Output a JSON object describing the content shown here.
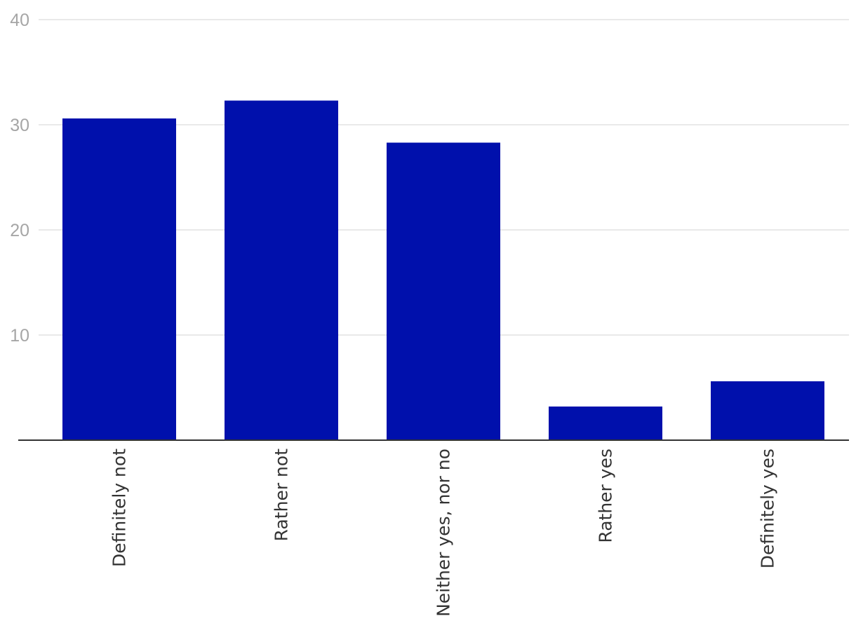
{
  "chart_data": {
    "type": "bar",
    "categories": [
      "Definitely not",
      "Rather not",
      "Neither yes, nor no",
      "Rather yes",
      "Definitely yes"
    ],
    "values": [
      30.6,
      32.3,
      28.3,
      3.2,
      5.6
    ],
    "ylim": [
      0,
      40
    ],
    "yticks": [
      10,
      20,
      30,
      40
    ],
    "title": "",
    "xlabel": "",
    "ylabel": "",
    "grid": true,
    "bar_color": "#0010ac",
    "x_tick_rotation": "vertical"
  }
}
